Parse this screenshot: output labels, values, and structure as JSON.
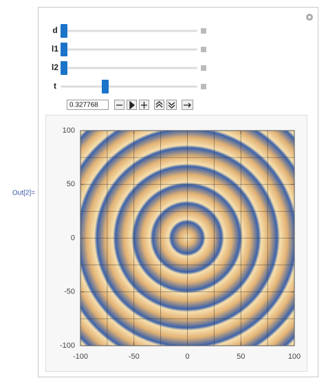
{
  "output_label": "Out[2]=",
  "controls": [
    {
      "label": "d"
    },
    {
      "label": "l1"
    },
    {
      "label": "l2"
    },
    {
      "label": "t"
    }
  ],
  "input_value": "0.327768",
  "plot": {
    "xlim": [
      -100,
      100
    ],
    "ylim": [
      -100,
      100
    ],
    "xticks": [
      -100,
      -50,
      0,
      50,
      100
    ],
    "yticks": [
      -100,
      -50,
      0,
      50,
      100
    ]
  }
}
